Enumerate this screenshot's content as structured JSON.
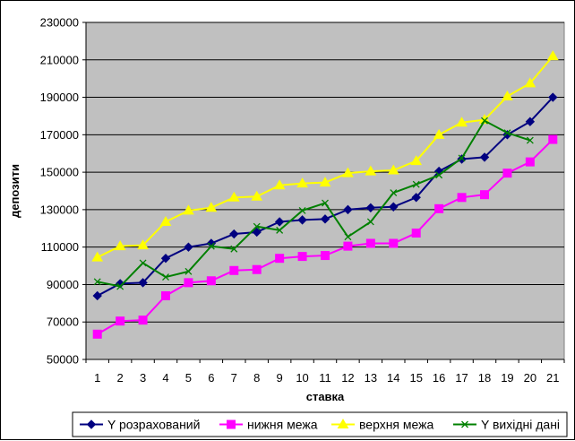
{
  "chart_data": {
    "type": "line",
    "xlabel": "ставка",
    "ylabel": "депозити",
    "x": [
      1,
      2,
      3,
      4,
      5,
      6,
      7,
      8,
      9,
      10,
      11,
      12,
      13,
      14,
      15,
      16,
      17,
      18,
      19,
      20,
      21
    ],
    "yticks": [
      50000,
      70000,
      90000,
      110000,
      130000,
      150000,
      170000,
      190000,
      210000,
      230000
    ],
    "ylim": [
      50000,
      230000
    ],
    "grid": "horizontal",
    "legend_position": "bottom",
    "plot_background": "#c0c0c0",
    "series": [
      {
        "name": "Y розрахований",
        "color": "#000080",
        "marker": "diamond",
        "values": [
          84000,
          90500,
          91000,
          104000,
          110000,
          112000,
          117000,
          118000,
          123500,
          124500,
          125000,
          130000,
          131000,
          131500,
          136500,
          150500,
          157000,
          158000,
          170000,
          177000,
          190000
        ]
      },
      {
        "name": "нижня межа",
        "color": "#ff00ff",
        "marker": "square",
        "values": [
          63500,
          70500,
          71000,
          84000,
          91000,
          92000,
          97500,
          98000,
          104000,
          105000,
          105500,
          110500,
          112000,
          112000,
          117500,
          130500,
          136500,
          138000,
          149500,
          155500,
          167500
        ]
      },
      {
        "name": "верхня межа",
        "color": "#ffff00",
        "marker": "triangle",
        "values": [
          104500,
          110500,
          111000,
          123500,
          129500,
          131000,
          136500,
          137000,
          143000,
          144000,
          144500,
          149500,
          150500,
          151000,
          156000,
          170000,
          176500,
          178000,
          190500,
          197500,
          212000
        ]
      },
      {
        "name": "Y вихідні дані",
        "color": "#008000",
        "marker": "x",
        "values": [
          91500,
          89000,
          101500,
          94000,
          97000,
          110500,
          109000,
          121000,
          119000,
          129500,
          133500,
          115500,
          123500,
          139000,
          143500,
          148500,
          157500,
          177500,
          171000,
          167000,
          null
        ]
      }
    ]
  }
}
